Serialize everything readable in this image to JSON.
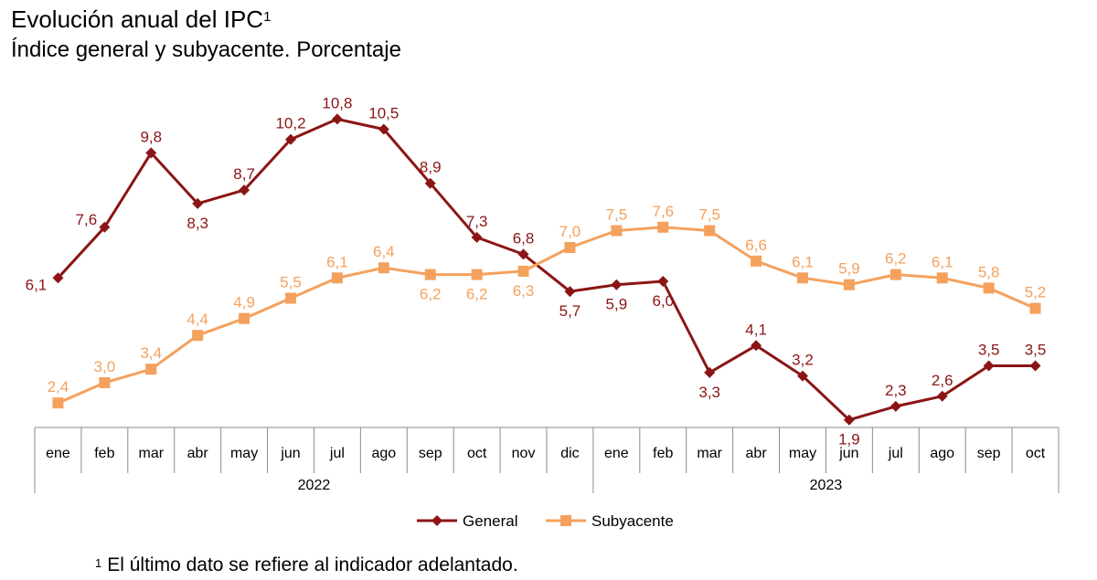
{
  "chart_data": {
    "type": "line",
    "title": "Evolución anual del IPC",
    "title_sup": "1",
    "subtitle": "Índice general y subyacente. Porcentaje",
    "categories": [
      "ene",
      "feb",
      "mar",
      "abr",
      "may",
      "jun",
      "jul",
      "ago",
      "sep",
      "oct",
      "nov",
      "dic",
      "ene",
      "feb",
      "mar",
      "abr",
      "may",
      "jun",
      "jul",
      "ago",
      "sep",
      "oct"
    ],
    "years": [
      {
        "label": "2022",
        "start": 0,
        "end": 11
      },
      {
        "label": "2023",
        "start": 12,
        "end": 21
      }
    ],
    "series": [
      {
        "name": "General",
        "color": "#8B1515",
        "marker": "diamond",
        "values": [
          6.1,
          7.6,
          9.8,
          8.3,
          8.7,
          10.2,
          10.8,
          10.5,
          8.9,
          7.3,
          6.8,
          5.7,
          5.9,
          6.0,
          3.3,
          4.1,
          3.2,
          1.9,
          2.3,
          2.6,
          3.5,
          3.5
        ],
        "labels": [
          "6,1",
          "7,6",
          "9,8",
          "8,3",
          "8,7",
          "10,2",
          "10,8",
          "10,5",
          "8,9",
          "7,3",
          "6,8",
          "5,7",
          "5,9",
          "6,0",
          "3,3",
          "4,1",
          "3,2",
          "1,9",
          "2,3",
          "2,6",
          "3,5",
          "3,5"
        ]
      },
      {
        "name": "Subyacente",
        "color": "#F4A15D",
        "marker": "square",
        "values": [
          2.4,
          3.0,
          3.4,
          4.4,
          4.9,
          5.5,
          6.1,
          6.4,
          6.2,
          6.2,
          6.3,
          7.0,
          7.5,
          7.6,
          7.5,
          6.6,
          6.1,
          5.9,
          6.2,
          6.1,
          5.8,
          5.2
        ],
        "labels": [
          "2,4",
          "3,0",
          "3,4",
          "4,4",
          "4,9",
          "5,5",
          "6,1",
          "6,4",
          "6,2",
          "6,2",
          "6,3",
          "7,0",
          "7,5",
          "7,6",
          "7,5",
          "6,6",
          "6,1",
          "5,9",
          "6,2",
          "6,1",
          "5,8",
          "5,2"
        ]
      }
    ],
    "ylim": [
      0,
      12
    ],
    "grid": false,
    "legend": "bottom-center"
  },
  "footnote": {
    "mark": "1",
    "text": "El último dato se refiere al indicador adelantado."
  }
}
